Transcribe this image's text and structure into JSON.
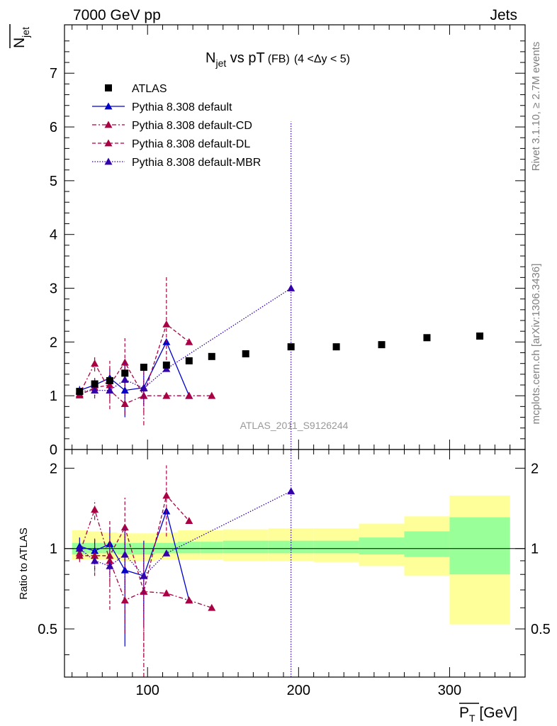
{
  "header": {
    "left_label": "7000 GeV pp",
    "right_label": "Jets",
    "side_label_top": "Rivet 3.1.10, ≥ 2.7M events",
    "side_label_bottom": "mcplots.cern.ch [arXiv:1306.3436]",
    "watermark": "ATLAS_2011_S9126244"
  },
  "chart_data": {
    "type": "scatter",
    "title": {
      "main": "N",
      "main_sub": "jet",
      "mid": " vs pT",
      "small": "(FB)",
      "range": "(4 <Δy < 5)"
    },
    "xlabel": "P",
    "xlabel_sub": "T",
    "xlabel_unit": " [GeV]",
    "ylabel_main": "N",
    "ylabel_main_sub": "jet",
    "ylabel_ratio": "Ratio to ATLAS",
    "xlim": [
      45,
      350
    ],
    "ylim_main": [
      0,
      7.9
    ],
    "ylim_ratio": [
      0.33,
      2.35
    ],
    "x_ticks": [
      100,
      200,
      300
    ],
    "y_ticks_main": [
      0,
      1,
      2,
      3,
      4,
      5,
      6,
      7
    ],
    "y_ticks_ratio": [
      0.5,
      1,
      2
    ],
    "legend_position": "top-left",
    "data": {
      "name": "ATLAS",
      "x": [
        55,
        65,
        75,
        85,
        97.5,
        112.5,
        127.5,
        142.5,
        165,
        195,
        225,
        255,
        285,
        320
      ],
      "y": [
        1.08,
        1.22,
        1.28,
        1.42,
        1.53,
        1.57,
        1.65,
        1.73,
        1.78,
        1.91,
        1.91,
        1.95,
        2.08,
        2.11
      ]
    },
    "ratio_band": {
      "x_edges": [
        50,
        60,
        70,
        80,
        90,
        105,
        120,
        135,
        150,
        180,
        210,
        240,
        270,
        300,
        340
      ],
      "inner_low": [
        0.95,
        0.96,
        0.96,
        0.95,
        0.95,
        0.96,
        0.96,
        0.96,
        0.96,
        0.96,
        0.96,
        0.95,
        0.93,
        0.8
      ],
      "inner_high": [
        1.05,
        1.05,
        1.05,
        1.05,
        1.05,
        1.05,
        1.06,
        1.06,
        1.07,
        1.07,
        1.07,
        1.1,
        1.16,
        1.31
      ],
      "outer_low": [
        0.91,
        0.91,
        0.91,
        0.9,
        0.9,
        0.91,
        0.91,
        0.91,
        0.9,
        0.9,
        0.89,
        0.86,
        0.79,
        0.52
      ],
      "outer_high": [
        1.17,
        1.16,
        1.15,
        1.14,
        1.14,
        1.15,
        1.17,
        1.17,
        1.18,
        1.19,
        1.19,
        1.24,
        1.32,
        1.58
      ]
    },
    "series": [
      {
        "name": "Pythia 8.308 default",
        "color": "#0000cc",
        "dash": "solid",
        "x": [
          55,
          65,
          75,
          85,
          97.5,
          112.5,
          127.5
        ],
        "y": [
          1.1,
          1.2,
          1.33,
          1.1,
          1.15,
          2.0,
          1.0
        ],
        "yerr": [
          0.08,
          0.12,
          0.18,
          0.5,
          0.35,
          0.0,
          0.0
        ],
        "ratio": [
          1.02,
          0.98,
          1.04,
          0.83,
          0.79,
          1.38,
          0.64
        ],
        "ratio_err": [
          0.08,
          0.1,
          0.16,
          0.4,
          0.28,
          0.0,
          0.0
        ]
      },
      {
        "name": "Pythia 8.308 default-CD",
        "color": "#aa0044",
        "dash": "dashdot",
        "x": [
          55,
          65,
          75,
          85,
          97.5,
          112.5,
          127.5,
          142.5
        ],
        "y": [
          1.03,
          1.6,
          1.1,
          0.85,
          1.0,
          1.0,
          1.0,
          1.0
        ],
        "yerr": [
          0.05,
          0.15,
          0.2,
          0.2,
          0.55,
          0.0,
          0.0,
          0.0
        ],
        "ratio": [
          0.96,
          1.4,
          0.9,
          0.64,
          0.69,
          0.68,
          0.64,
          0.6
        ],
        "ratio_err": [
          0.05,
          0.12,
          0.16,
          0.16,
          0.36,
          0.0,
          0.0,
          0.0
        ]
      },
      {
        "name": "Pythia 8.308 default-DL",
        "color": "#aa0044",
        "dash": "dashed",
        "x": [
          55,
          65,
          75,
          85,
          97.5,
          112.5,
          127.5
        ],
        "y": [
          1.01,
          1.15,
          1.2,
          1.62,
          1.0,
          2.33,
          2.0
        ],
        "yerr": [
          0.05,
          0.2,
          0.45,
          0.45,
          0.3,
          0.88,
          0.0
        ],
        "ratio": [
          0.94,
          0.94,
          0.94,
          1.2,
          0.69,
          1.58,
          1.27
        ],
        "ratio_err": [
          0.05,
          0.15,
          0.35,
          0.35,
          0.3,
          0.47,
          0.0
        ]
      },
      {
        "name": "Pythia 8.308 default-MBR",
        "color": "#3300aa",
        "dash": "dotted",
        "x": [
          55,
          65,
          75,
          85,
          97.5,
          112.5,
          195
        ],
        "y": [
          1.08,
          1.1,
          1.1,
          1.3,
          1.14,
          1.5,
          3.0
        ],
        "yerr": [
          0.05,
          0.1,
          0.1,
          0.35,
          0.3,
          0.0,
          3.1
        ],
        "ratio": [
          1.0,
          0.9,
          0.86,
          0.95,
          0.79,
          0.96,
          1.64
        ],
        "ratio_err": [
          0.05,
          0.08,
          0.08,
          0.25,
          0.22,
          0.0,
          1.6
        ]
      }
    ]
  }
}
